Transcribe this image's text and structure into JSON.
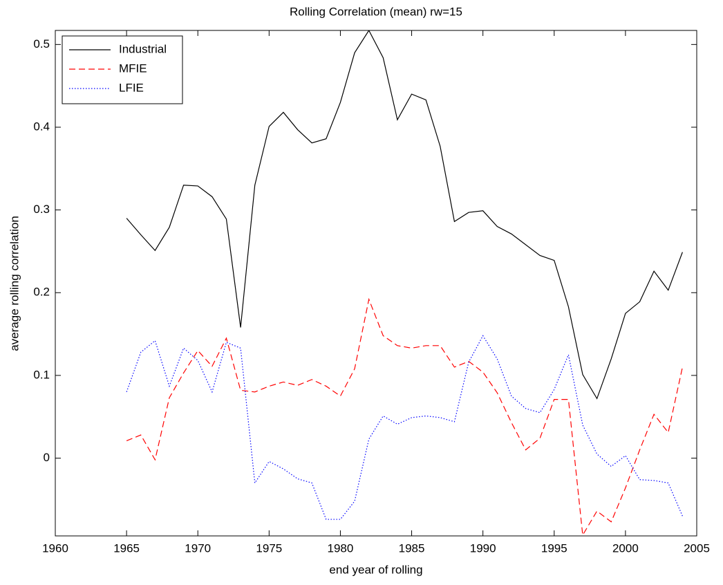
{
  "chart_data": {
    "type": "line",
    "title": "Rolling Correlation (mean) rw=15",
    "x_label": "end year of rolling",
    "y_label": "average rolling correlation",
    "x": [
      1965,
      1966,
      1967,
      1968,
      1969,
      1970,
      1971,
      1972,
      1973,
      1974,
      1975,
      1976,
      1977,
      1978,
      1979,
      1980,
      1981,
      1982,
      1983,
      1984,
      1985,
      1986,
      1987,
      1988,
      1989,
      1990,
      1991,
      1992,
      1993,
      1994,
      1995,
      1996,
      1997,
      1998,
      1999,
      2000,
      2001,
      2002,
      2003,
      2004
    ],
    "series": [
      {
        "name": "Industrial",
        "color": "#000000",
        "dash": "solid",
        "values": [
          0.29,
          0.27,
          0.251,
          0.279,
          0.33,
          0.329,
          0.316,
          0.289,
          0.158,
          0.33,
          0.401,
          0.418,
          0.397,
          0.381,
          0.386,
          0.43,
          0.49,
          0.517,
          0.484,
          0.409,
          0.44,
          0.433,
          0.377,
          0.286,
          0.297,
          0.299,
          0.28,
          0.271,
          0.258,
          0.245,
          0.239,
          0.183,
          0.101,
          0.072,
          0.12,
          0.175,
          0.189,
          0.226,
          0.203,
          0.249
        ]
      },
      {
        "name": "MFIE",
        "color": "#ff0000",
        "dash": "dashed",
        "values": [
          0.021,
          0.028,
          -0.002,
          0.073,
          0.103,
          0.13,
          0.111,
          0.145,
          0.082,
          0.08,
          0.087,
          0.092,
          0.088,
          0.095,
          0.087,
          0.075,
          0.108,
          0.192,
          0.148,
          0.136,
          0.133,
          0.136,
          0.136,
          0.11,
          0.117,
          0.104,
          0.079,
          0.043,
          0.01,
          0.024,
          0.071,
          0.071,
          -0.093,
          -0.064,
          -0.077,
          -0.036,
          0.01,
          0.053,
          0.031,
          0.11
        ]
      },
      {
        "name": "LFIE",
        "color": "#0000ff",
        "dash": "dotted",
        "values": [
          0.08,
          0.128,
          0.142,
          0.087,
          0.133,
          0.118,
          0.08,
          0.14,
          0.133,
          -0.03,
          -0.004,
          -0.013,
          -0.025,
          -0.03,
          -0.074,
          -0.074,
          -0.052,
          0.023,
          0.051,
          0.041,
          0.049,
          0.051,
          0.049,
          0.044,
          0.116,
          0.148,
          0.12,
          0.075,
          0.06,
          0.055,
          0.083,
          0.125,
          0.04,
          0.005,
          -0.01,
          0.003,
          -0.026,
          -0.027,
          -0.03,
          -0.07
        ]
      }
    ],
    "xlim": [
      1960,
      2005
    ],
    "xticks": [
      1960,
      1965,
      1970,
      1975,
      1980,
      1985,
      1990,
      1995,
      2000,
      2005
    ],
    "ylim": [
      -0.094,
      0.517
    ],
    "yticks": [
      0,
      0.1,
      0.2,
      0.3,
      0.4,
      0.5
    ],
    "legend": "upper left",
    "grid": false
  }
}
